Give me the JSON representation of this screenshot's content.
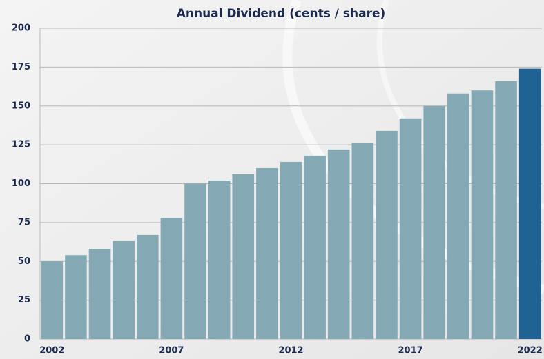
{
  "chart_data": {
    "type": "bar",
    "title": "Annual Dividend (cents / share)",
    "categories": [
      "2002",
      null,
      null,
      null,
      null,
      "2007",
      null,
      null,
      null,
      null,
      "2012",
      null,
      null,
      null,
      null,
      "2017",
      null,
      null,
      null,
      null,
      "2022"
    ],
    "values": [
      50,
      54,
      58,
      63,
      67,
      78,
      100,
      102,
      106,
      110,
      114,
      118,
      122,
      126,
      134,
      142,
      150,
      158,
      160,
      166,
      174
    ],
    "colors": [
      "#84a9b4",
      "#84a9b4",
      "#84a9b4",
      "#84a9b4",
      "#84a9b4",
      "#84a9b4",
      "#84a9b4",
      "#84a9b4",
      "#84a9b4",
      "#84a9b4",
      "#84a9b4",
      "#84a9b4",
      "#84a9b4",
      "#84a9b4",
      "#84a9b4",
      "#84a9b4",
      "#84a9b4",
      "#84a9b4",
      "#84a9b4",
      "#84a9b4",
      "#1e6394"
    ],
    "ylim": [
      0,
      200
    ],
    "yticks": [
      0,
      25,
      50,
      75,
      100,
      125,
      150,
      175,
      200
    ],
    "grid": true
  }
}
